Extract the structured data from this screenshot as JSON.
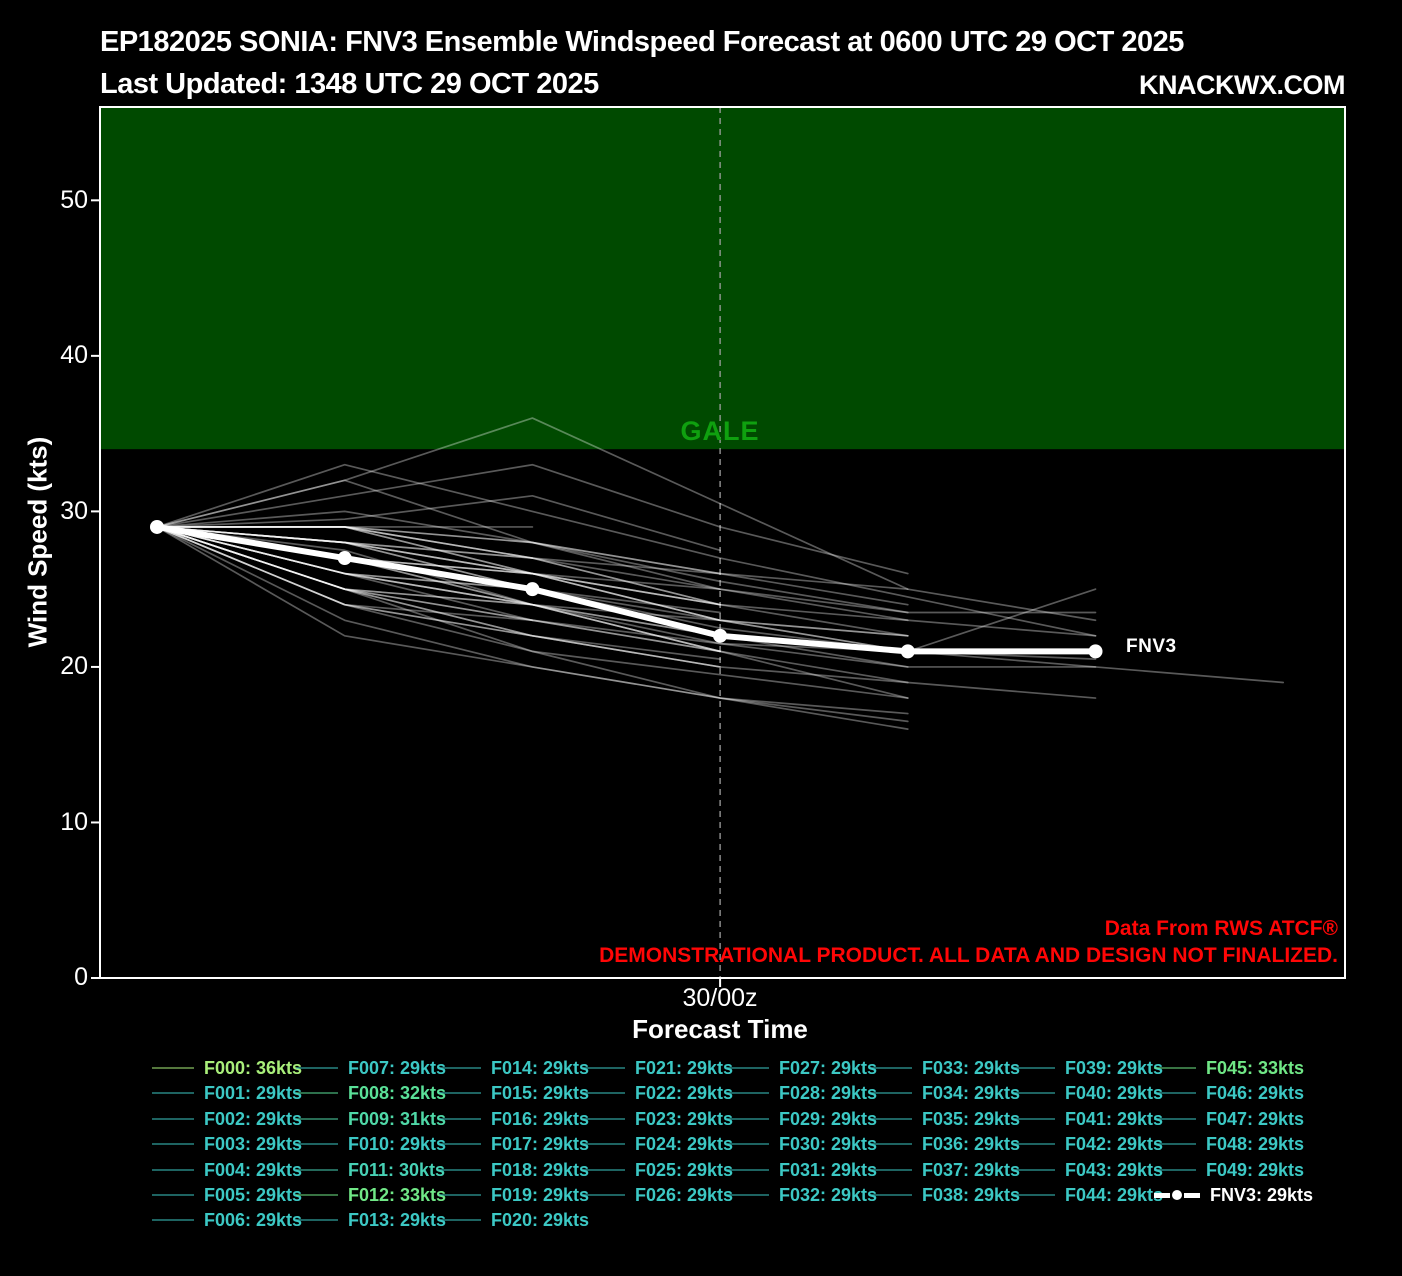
{
  "header": {
    "title": "EP182025 SONIA: FNV3 Ensemble Windspeed Forecast at 0600 UTC 29 OCT 2025",
    "updated": "Last Updated: 1348 UTC 29 OCT 2025",
    "brand": "KNACKWX.COM"
  },
  "axes": {
    "ylabel": "Wind Speed (kts)",
    "xlabel": "Forecast Time",
    "yticks": [
      "0",
      "10",
      "20",
      "30",
      "40",
      "50"
    ],
    "xtick": "30/00z",
    "gale_label": "GALE"
  },
  "notes": {
    "source": "Data From RWS ATCF®",
    "disclaimer": "DEMONSTRATIONAL PRODUCT. ALL DATA AND DESIGN NOT FINALIZED."
  },
  "colors": {
    "background": "#000000",
    "gale_region": "#004a00",
    "gale_text": "#0fa00f",
    "note_red": "#ff0606",
    "member_line": "rgba(255,255,255,0.35)",
    "fnv3_line": "#ffffff",
    "dashed_line": "#a0a0a0",
    "spine": "#ffffff",
    "value_colors": {
      "29": "#3cc8c4",
      "30": "#47d1b5",
      "31": "#4fd8a7",
      "32": "#5ae098",
      "33": "#70e786",
      "36": "#a9ef7a"
    }
  },
  "chart_data": {
    "type": "line",
    "title": "EP182025 SONIA: FNV3 Ensemble Windspeed Forecast at 0600 UTC 29 OCT 2025",
    "xlabel": "Forecast Time",
    "ylabel": "Wind Speed (kts)",
    "ylim": [
      0,
      56
    ],
    "grid": false,
    "gale_threshold_kts": 34,
    "x_step_hours": 6,
    "x_tick_index": 3,
    "x_tick_label": "30/00z",
    "legend_position": "below",
    "fnv3": {
      "id": "FNV3",
      "kts": 29,
      "annot": "FNV3",
      "values": [
        29,
        27,
        25,
        22,
        21,
        21
      ]
    },
    "members": [
      {
        "id": "F000",
        "kts": 36,
        "values": [
          29,
          32,
          36,
          30.5,
          25,
          23
        ]
      },
      {
        "id": "F001",
        "kts": 29,
        "values": [
          29,
          29,
          27,
          24,
          22
        ]
      },
      {
        "id": "F002",
        "kts": 29,
        "values": [
          29,
          28,
          26,
          23
        ]
      },
      {
        "id": "F003",
        "kts": 29,
        "values": [
          29,
          27,
          25,
          22,
          21,
          20,
          19
        ]
      },
      {
        "id": "F004",
        "kts": 29,
        "values": [
          29,
          27.5,
          24,
          21,
          18
        ]
      },
      {
        "id": "F005",
        "kts": 29,
        "values": [
          29,
          25,
          21,
          18,
          16
        ]
      },
      {
        "id": "F006",
        "kts": 29,
        "values": [
          29,
          24,
          22,
          20.5
        ]
      },
      {
        "id": "F007",
        "kts": 29,
        "values": [
          29,
          29,
          28,
          25,
          23,
          22
        ]
      },
      {
        "id": "F008",
        "kts": 32,
        "values": [
          29,
          32,
          28,
          26,
          24
        ]
      },
      {
        "id": "F009",
        "kts": 31,
        "values": [
          29,
          29.5,
          31,
          27.5
        ]
      },
      {
        "id": "F010",
        "kts": 29,
        "values": [
          29,
          28,
          25,
          22.5,
          21
        ]
      },
      {
        "id": "F011",
        "kts": 30,
        "values": [
          29,
          30,
          28,
          25.5,
          23.5
        ]
      },
      {
        "id": "F012",
        "kts": 33,
        "values": [
          29,
          33,
          30,
          27,
          24.5,
          22
        ]
      },
      {
        "id": "F013",
        "kts": 29,
        "values": [
          29,
          27,
          24,
          21
        ]
      },
      {
        "id": "F014",
        "kts": 29,
        "values": [
          29,
          29,
          26,
          24
        ]
      },
      {
        "id": "F015",
        "kts": 29,
        "values": [
          29,
          26,
          24,
          22,
          21
        ]
      },
      {
        "id": "F016",
        "kts": 29,
        "values": [
          29,
          25,
          22,
          20
        ]
      },
      {
        "id": "F017",
        "kts": 29,
        "values": [
          29,
          23,
          20,
          18,
          16.5
        ]
      },
      {
        "id": "F018",
        "kts": 29,
        "values": [
          29,
          29,
          29
        ]
      },
      {
        "id": "F019",
        "kts": 29,
        "values": [
          29,
          28,
          27,
          25,
          23.5,
          23.5
        ]
      },
      {
        "id": "F020",
        "kts": 29,
        "values": [
          29,
          27,
          26,
          24
        ]
      },
      {
        "id": "F021",
        "kts": 29,
        "values": [
          29,
          29,
          28,
          26,
          25
        ]
      },
      {
        "id": "F022",
        "kts": 29,
        "values": [
          29,
          28,
          26,
          25
        ]
      },
      {
        "id": "F023",
        "kts": 29,
        "values": [
          29,
          27,
          25
        ]
      },
      {
        "id": "F024",
        "kts": 29,
        "values": [
          29,
          26,
          25,
          23,
          21
        ]
      },
      {
        "id": "F025",
        "kts": 29,
        "values": [
          29,
          25,
          23,
          21,
          19,
          18
        ]
      },
      {
        "id": "F026",
        "kts": 29,
        "values": [
          29,
          24,
          21,
          19.5,
          18
        ]
      },
      {
        "id": "F027",
        "kts": 29,
        "values": [
          29,
          29,
          27,
          26
        ]
      },
      {
        "id": "F028",
        "kts": 29,
        "values": [
          29,
          27,
          25,
          22,
          21,
          25
        ]
      },
      {
        "id": "F029",
        "kts": 29,
        "values": [
          29,
          27,
          26
        ]
      },
      {
        "id": "F030",
        "kts": 29,
        "values": [
          29,
          26,
          24,
          23,
          22
        ]
      },
      {
        "id": "F031",
        "kts": 29,
        "values": [
          29,
          25,
          24,
          22
        ]
      },
      {
        "id": "F032",
        "kts": 29,
        "values": [
          29,
          24,
          23
        ]
      },
      {
        "id": "F033",
        "kts": 29,
        "values": [
          29,
          29,
          26,
          23,
          22
        ]
      },
      {
        "id": "F034",
        "kts": 29,
        "values": [
          29,
          28,
          25
        ]
      },
      {
        "id": "F035",
        "kts": 29,
        "values": [
          29,
          27,
          24,
          21.5,
          21,
          20.5
        ]
      },
      {
        "id": "F036",
        "kts": 29,
        "values": [
          29,
          26,
          23,
          21
        ]
      },
      {
        "id": "F037",
        "kts": 29,
        "values": [
          29,
          25,
          22,
          20,
          19
        ]
      },
      {
        "id": "F038",
        "kts": 29,
        "values": [
          29,
          22,
          20,
          18,
          17
        ]
      },
      {
        "id": "F039",
        "kts": 29,
        "values": [
          29,
          29,
          27
        ]
      },
      {
        "id": "F040",
        "kts": 29,
        "values": [
          29,
          28,
          26,
          24,
          23
        ]
      },
      {
        "id": "F041",
        "kts": 29,
        "values": [
          29,
          27,
          25,
          23.5
        ]
      },
      {
        "id": "F042",
        "kts": 29,
        "values": [
          29,
          26,
          24
        ]
      },
      {
        "id": "F043",
        "kts": 29,
        "values": [
          29,
          25,
          23,
          21.5,
          20,
          20
        ]
      },
      {
        "id": "F044",
        "kts": 29,
        "values": [
          29,
          24,
          22,
          20
        ]
      },
      {
        "id": "F045",
        "kts": 33,
        "values": [
          29,
          31,
          33,
          29,
          26
        ]
      },
      {
        "id": "F046",
        "kts": 29,
        "values": [
          29,
          28,
          27,
          24
        ]
      },
      {
        "id": "F047",
        "kts": 29,
        "values": [
          29,
          27,
          26,
          23,
          21
        ]
      },
      {
        "id": "F048",
        "kts": 29,
        "values": [
          29,
          26,
          25,
          22,
          20
        ]
      },
      {
        "id": "F049",
        "kts": 29,
        "values": [
          29,
          25,
          24,
          21
        ]
      }
    ]
  },
  "legend": {
    "unit_suffix": "kts",
    "column_counts": [
      7,
      7,
      7,
      6,
      6,
      6,
      6,
      6
    ],
    "fnv3_entry": "FNV3: 29kts"
  }
}
